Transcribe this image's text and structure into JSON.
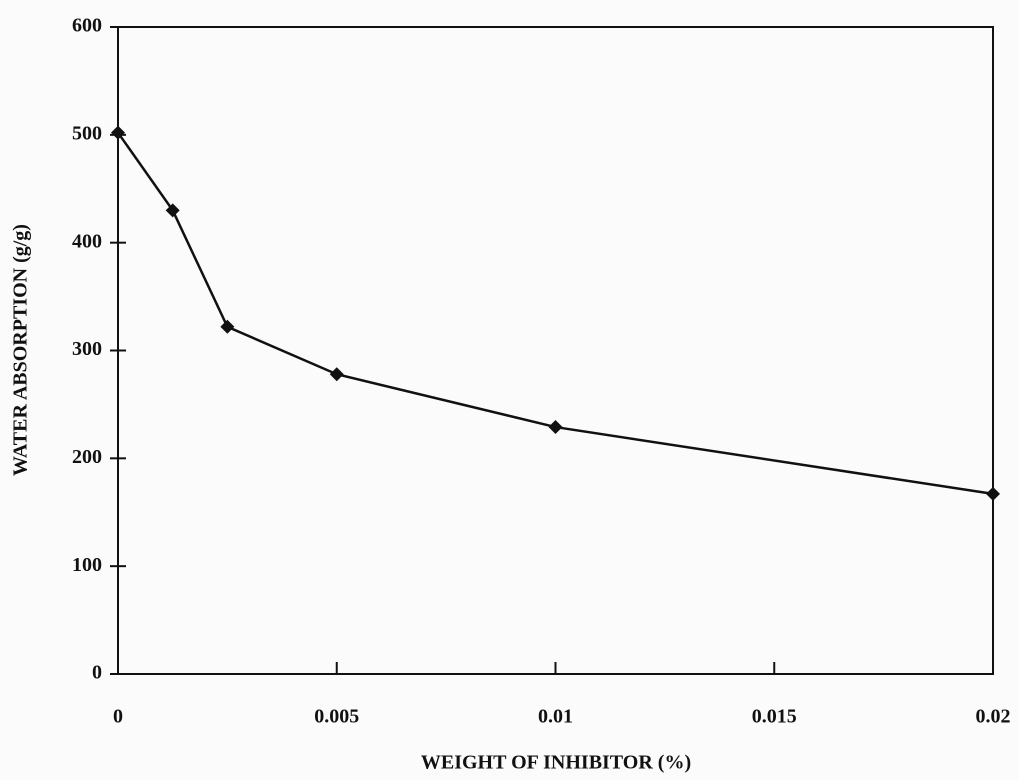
{
  "chart_data": {
    "type": "line",
    "x_label": "WEIGHT OF INHIBITOR (%)",
    "y_label": "WATER ABSORPTION (g/g)",
    "x": [
      0,
      0.00125,
      0.0025,
      0.005,
      0.01,
      0.02
    ],
    "series": [
      {
        "color": "#111111",
        "values": [
          502,
          430,
          322,
          278,
          229,
          167
        ]
      }
    ],
    "xlim": [
      0,
      0.02
    ],
    "xticks": [
      0,
      0.005,
      0.01,
      0.015,
      0.02
    ],
    "ylim": [
      0,
      600
    ],
    "yticks": [
      0,
      100,
      200,
      300,
      400,
      500,
      600
    ],
    "grid": false,
    "marker": "diamond"
  }
}
